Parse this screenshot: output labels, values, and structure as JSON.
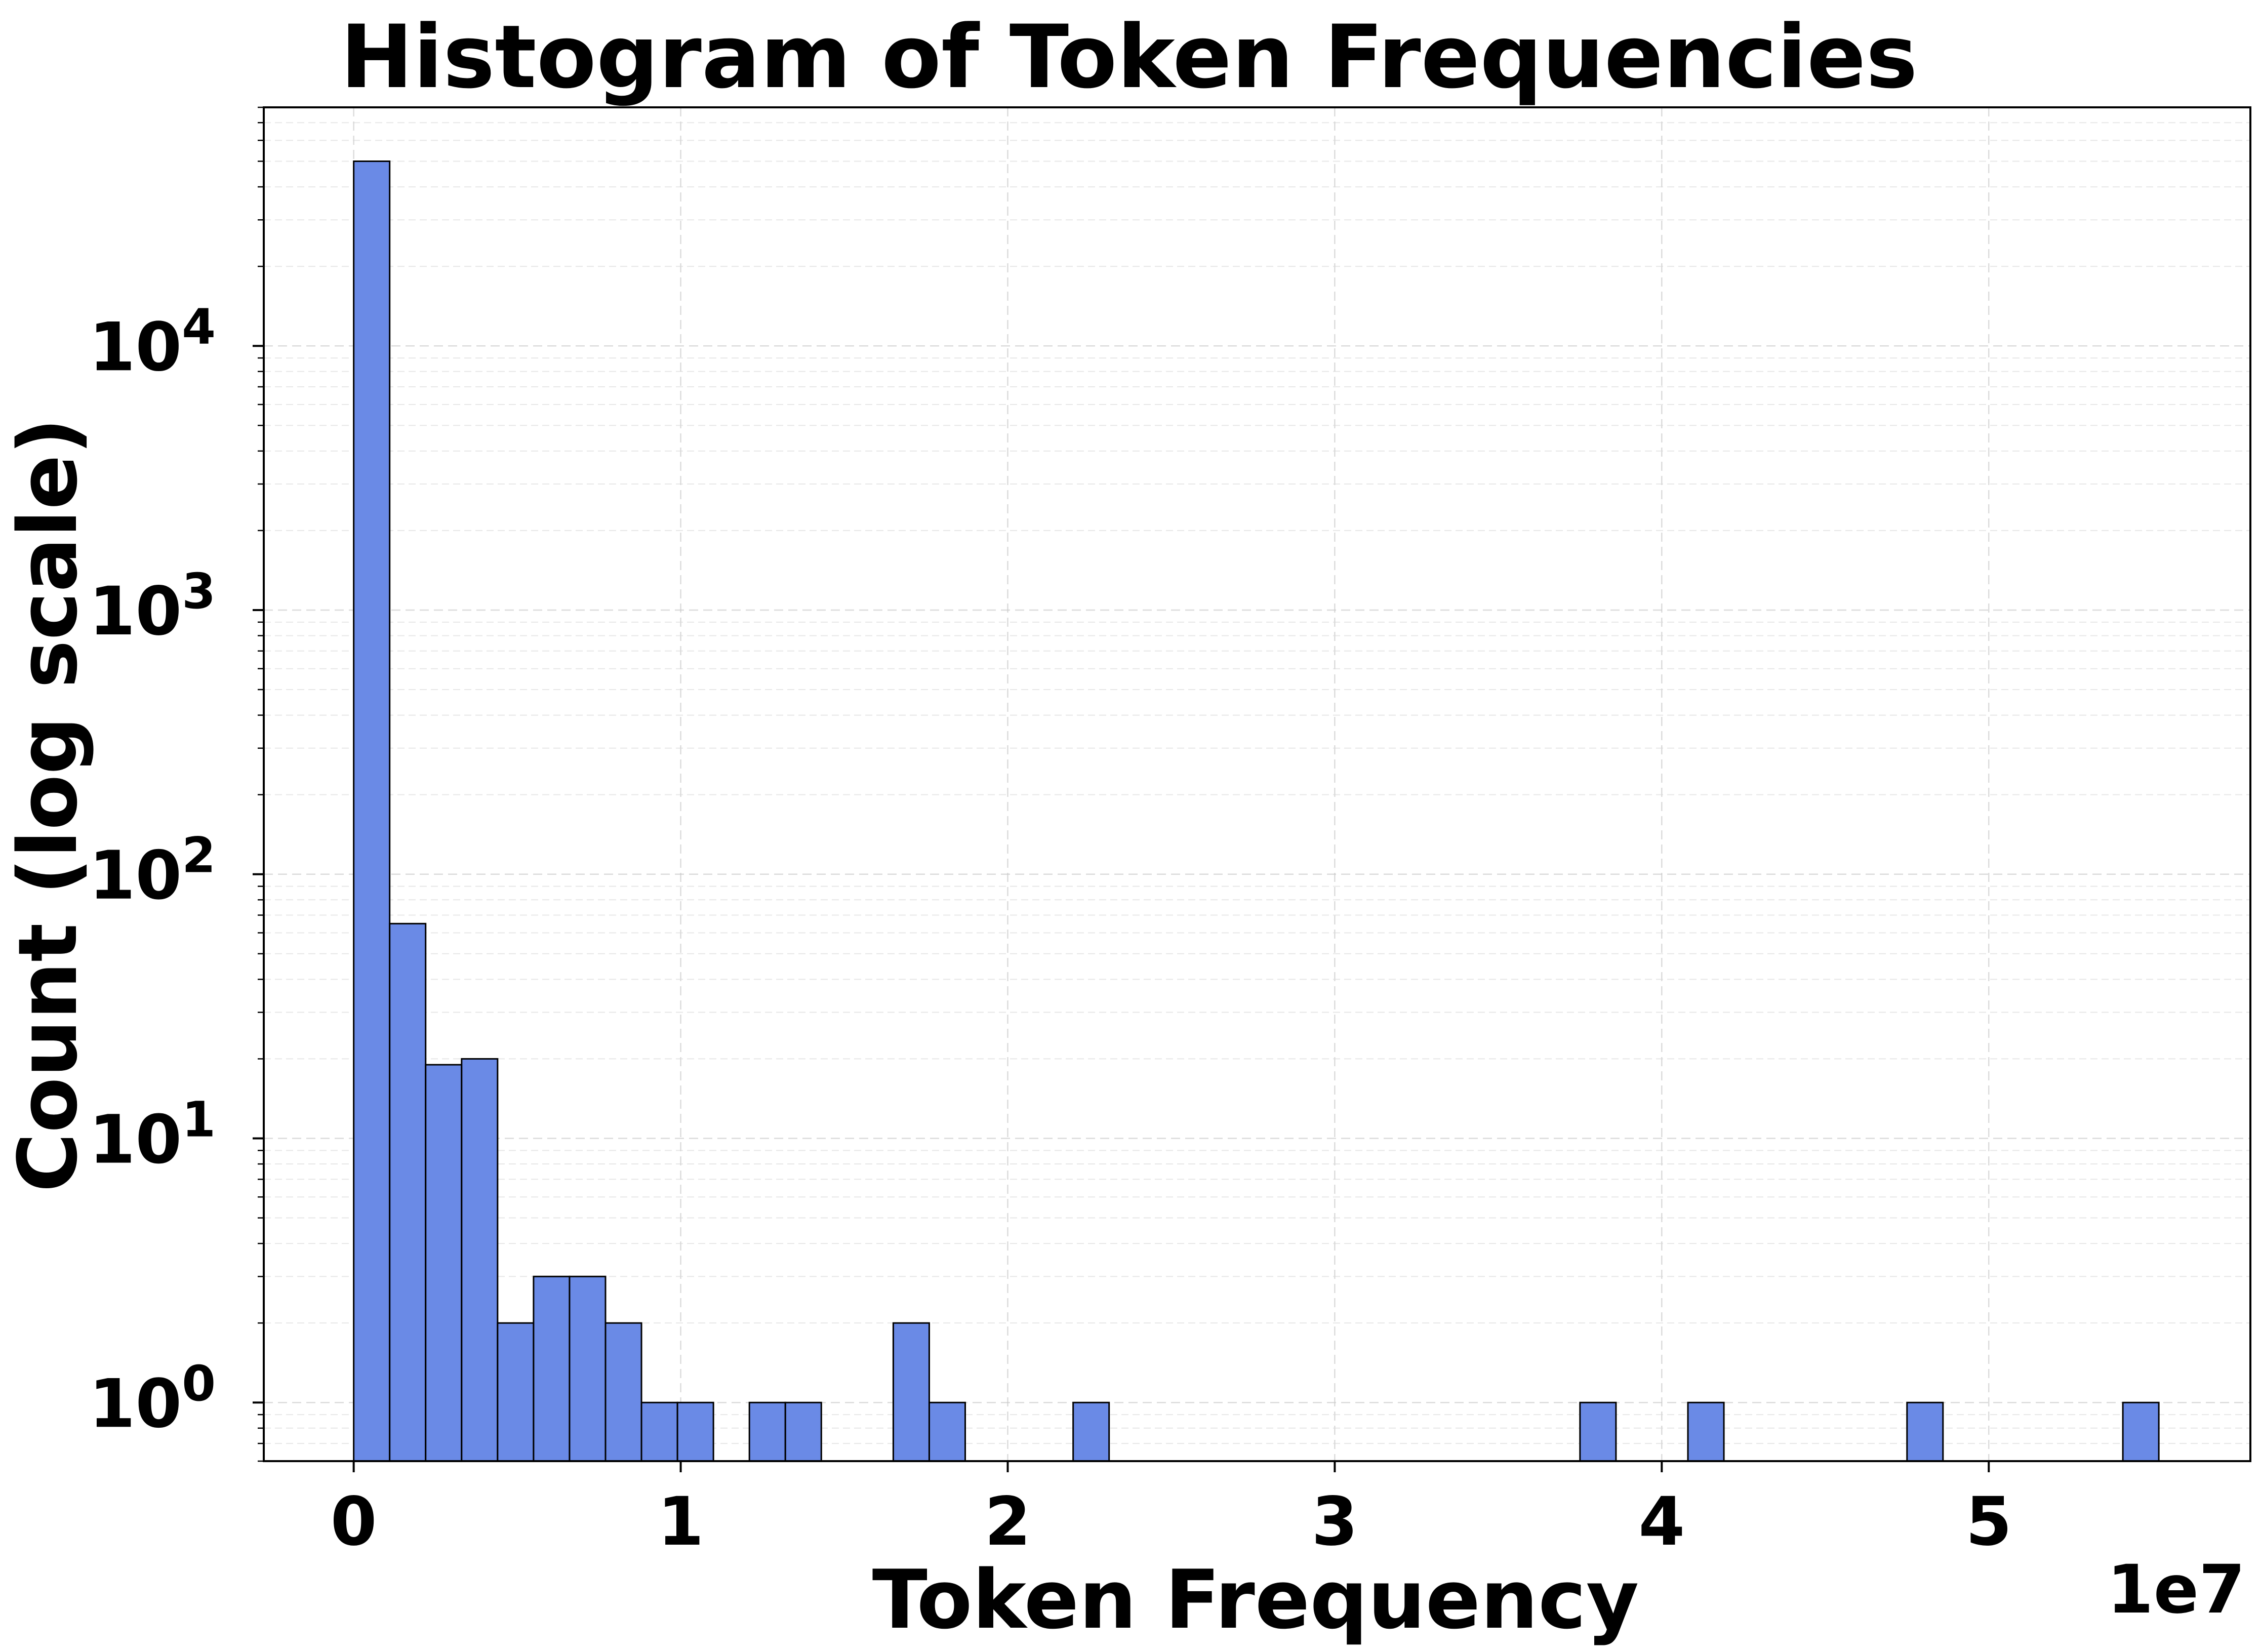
{
  "chart_data": {
    "type": "bar",
    "title": "Histogram of Token Frequencies",
    "xlabel": "Token Frequency",
    "ylabel": "Count (log scale)",
    "x_offset_label": "1e7",
    "x_scale_multiplier": 10000000,
    "y_scale": "log",
    "grid": true,
    "bar_color": "#6a8ae6",
    "bar_edge_color": "#000000",
    "xlim": [
      -2750000,
      58000000
    ],
    "ylim": [
      0.6,
      80000
    ],
    "bin_width": 1100000,
    "x_ticks": [
      {
        "value": 0,
        "label": "0"
      },
      {
        "value": 10000000,
        "label": "1"
      },
      {
        "value": 20000000,
        "label": "2"
      },
      {
        "value": 30000000,
        "label": "3"
      },
      {
        "value": 40000000,
        "label": "4"
      },
      {
        "value": 50000000,
        "label": "5"
      }
    ],
    "y_ticks": [
      {
        "value": 1,
        "base": "10",
        "exp": "0"
      },
      {
        "value": 10,
        "base": "10",
        "exp": "1"
      },
      {
        "value": 100,
        "base": "10",
        "exp": "2"
      },
      {
        "value": 1000,
        "base": "10",
        "exp": "3"
      },
      {
        "value": 10000,
        "base": "10",
        "exp": "4"
      }
    ],
    "bins": [
      {
        "x0": 0,
        "count": 50000
      },
      {
        "x0": 1100000,
        "count": 65
      },
      {
        "x0": 2200000,
        "count": 19
      },
      {
        "x0": 3300000,
        "count": 20
      },
      {
        "x0": 4400000,
        "count": 2
      },
      {
        "x0": 5500000,
        "count": 3
      },
      {
        "x0": 6600000,
        "count": 3
      },
      {
        "x0": 7700000,
        "count": 2
      },
      {
        "x0": 8800000,
        "count": 1
      },
      {
        "x0": 9900000,
        "count": 1
      },
      {
        "x0": 12100000,
        "count": 1
      },
      {
        "x0": 13200000,
        "count": 1
      },
      {
        "x0": 16500000,
        "count": 2
      },
      {
        "x0": 17600000,
        "count": 1
      },
      {
        "x0": 22000000,
        "count": 1
      },
      {
        "x0": 37500000,
        "count": 1
      },
      {
        "x0": 40800000,
        "count": 1
      },
      {
        "x0": 47500000,
        "count": 1
      },
      {
        "x0": 54100000,
        "count": 1
      }
    ]
  }
}
